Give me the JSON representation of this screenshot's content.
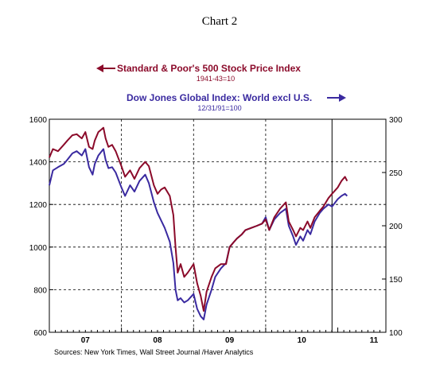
{
  "chart_data": {
    "type": "line",
    "title": "Chart 2",
    "ylim_left": [
      600,
      1600
    ],
    "ylim_right": [
      100,
      300
    ],
    "left_ticks": [
      "1600",
      "1400",
      "1200",
      "1000",
      "800",
      "600"
    ],
    "right_ticks": [
      "300",
      "250",
      "200",
      "150",
      "100"
    ],
    "x_ticks": [
      "07",
      "08",
      "09",
      "10",
      "11"
    ],
    "xlim": [
      2007.0,
      2011.667
    ],
    "dashed_verticals": [
      2008.0,
      2009.0,
      2010.0
    ],
    "solid_vertical": 2010.92,
    "dashed_horizontals": [
      1400,
      1200,
      1000,
      800
    ],
    "grid": "dashed",
    "series": [
      {
        "name": "Standard & Poor's 500 Stock Price Index",
        "subtitle": "1941-43=10",
        "axis": "left",
        "color": "#8b0a2a",
        "arrow": "left",
        "x": [
          2007.0,
          2007.05,
          2007.12,
          2007.2,
          2007.25,
          2007.32,
          2007.38,
          2007.45,
          2007.5,
          2007.55,
          2007.6,
          2007.63,
          2007.68,
          2007.75,
          2007.78,
          2007.82,
          2007.87,
          2007.92,
          2008.0,
          2008.05,
          2008.12,
          2008.18,
          2008.25,
          2008.33,
          2008.38,
          2008.45,
          2008.5,
          2008.55,
          2008.6,
          2008.67,
          2008.72,
          2008.75,
          2008.78,
          2008.82,
          2008.87,
          2008.92,
          2009.0,
          2009.05,
          2009.1,
          2009.14,
          2009.18,
          2009.25,
          2009.3,
          2009.38,
          2009.45,
          2009.5,
          2009.55,
          2009.6,
          2009.67,
          2009.72,
          2009.8,
          2009.88,
          2009.95,
          2010.0,
          2010.05,
          2010.12,
          2010.2,
          2010.28,
          2010.32,
          2010.38,
          2010.42,
          2010.48,
          2010.52,
          2010.58,
          2010.62,
          2010.68,
          2010.75,
          2010.8,
          2010.87,
          2010.92,
          2011.0,
          2011.05,
          2011.1,
          2011.13
        ],
        "values": [
          1420,
          1460,
          1450,
          1480,
          1500,
          1525,
          1530,
          1510,
          1540,
          1470,
          1460,
          1500,
          1540,
          1560,
          1510,
          1470,
          1480,
          1450,
          1380,
          1330,
          1360,
          1320,
          1370,
          1400,
          1380,
          1290,
          1250,
          1270,
          1280,
          1240,
          1150,
          1000,
          880,
          920,
          860,
          880,
          920,
          830,
          770,
          700,
          790,
          860,
          900,
          920,
          920,
          1000,
          1020,
          1040,
          1060,
          1080,
          1090,
          1100,
          1110,
          1130,
          1080,
          1140,
          1180,
          1210,
          1120,
          1080,
          1050,
          1090,
          1080,
          1120,
          1090,
          1140,
          1170,
          1190,
          1230,
          1250,
          1280,
          1310,
          1330,
          1310
        ]
      },
      {
        "name": "Dow Jones Global Index: World excl U.S.",
        "subtitle": "12/31/91=100",
        "axis": "right",
        "color": "#3a2aa0",
        "arrow": "right",
        "x": [
          2007.0,
          2007.05,
          2007.12,
          2007.2,
          2007.25,
          2007.32,
          2007.38,
          2007.45,
          2007.5,
          2007.55,
          2007.6,
          2007.63,
          2007.68,
          2007.75,
          2007.78,
          2007.82,
          2007.87,
          2007.92,
          2008.0,
          2008.05,
          2008.12,
          2008.18,
          2008.25,
          2008.33,
          2008.38,
          2008.45,
          2008.5,
          2008.55,
          2008.6,
          2008.67,
          2008.72,
          2008.75,
          2008.78,
          2008.82,
          2008.87,
          2008.92,
          2009.0,
          2009.05,
          2009.1,
          2009.14,
          2009.18,
          2009.25,
          2009.3,
          2009.38,
          2009.45,
          2009.5,
          2009.55,
          2009.6,
          2009.67,
          2009.72,
          2009.8,
          2009.88,
          2009.95,
          2010.0,
          2010.05,
          2010.12,
          2010.2,
          2010.28,
          2010.32,
          2010.38,
          2010.42,
          2010.48,
          2010.52,
          2010.58,
          2010.62,
          2010.68,
          2010.75,
          2010.8,
          2010.87,
          2010.92,
          2011.0,
          2011.05,
          2011.1,
          2011.13
        ],
        "values": [
          238,
          252,
          255,
          258,
          262,
          268,
          270,
          266,
          272,
          255,
          248,
          258,
          266,
          272,
          262,
          254,
          255,
          250,
          236,
          228,
          238,
          232,
          242,
          248,
          240,
          222,
          212,
          205,
          198,
          185,
          165,
          140,
          130,
          132,
          128,
          130,
          136,
          122,
          115,
          112,
          126,
          140,
          152,
          160,
          165,
          180,
          184,
          188,
          192,
          196,
          198,
          200,
          202,
          208,
          196,
          206,
          212,
          216,
          200,
          190,
          182,
          190,
          186,
          196,
          192,
          204,
          212,
          216,
          220,
          218,
          225,
          228,
          230,
          228
        ]
      }
    ],
    "source": "Sources:  New York Times, Wall Street Journal /Haver Analytics"
  }
}
